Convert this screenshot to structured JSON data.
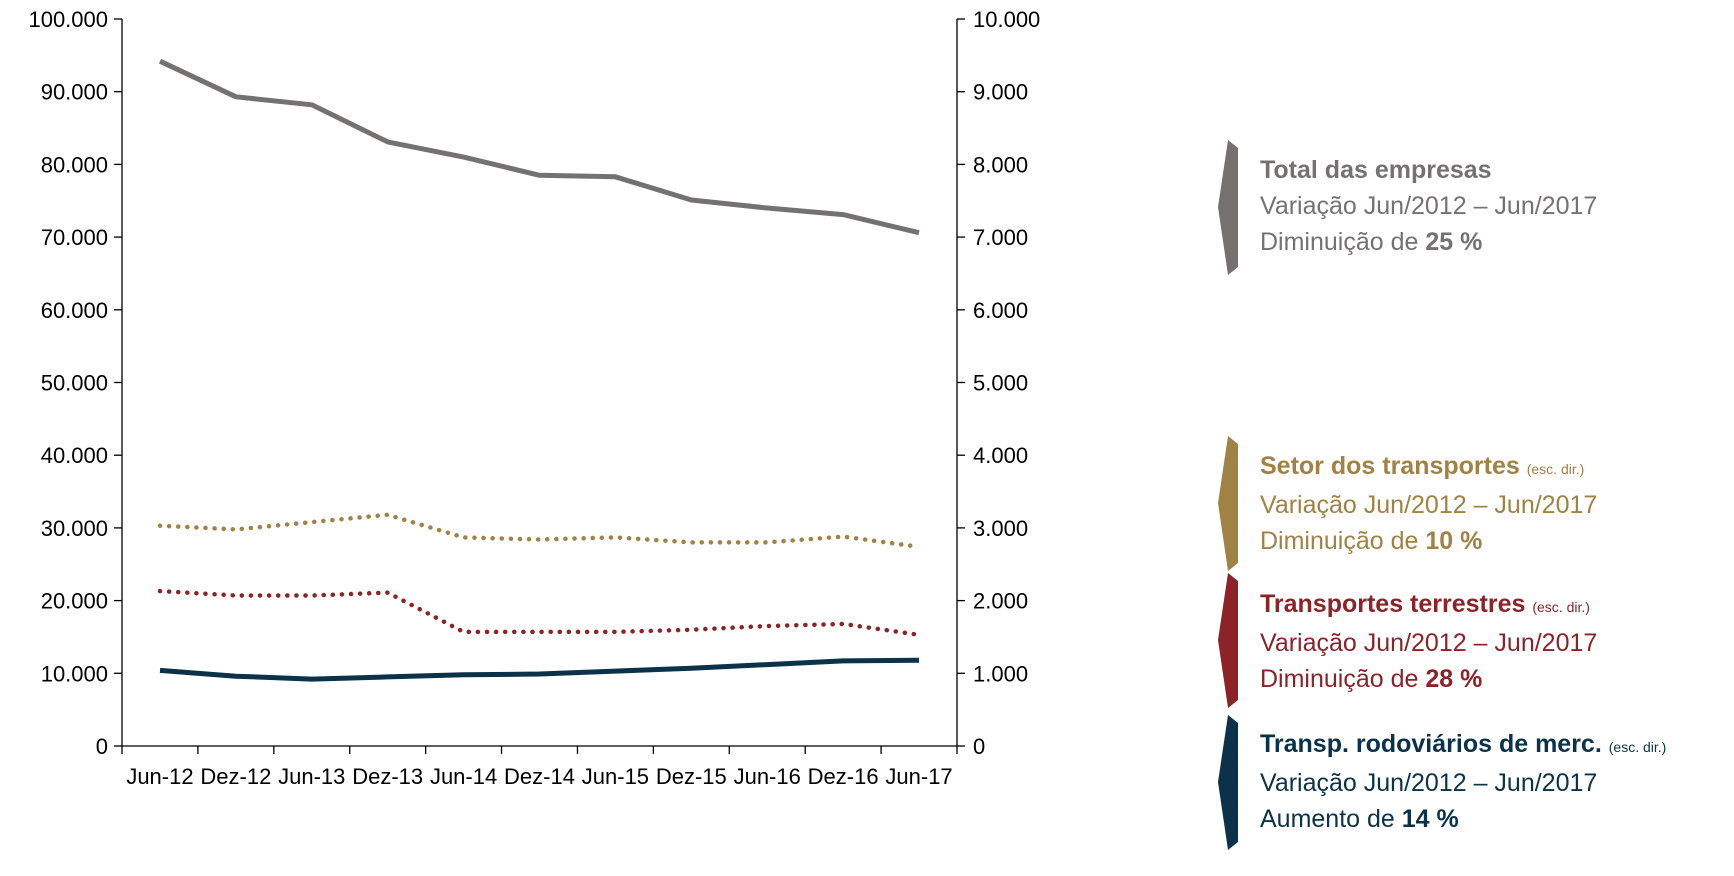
{
  "chart_data": {
    "type": "line",
    "categories": [
      "Jun-12",
      "Dez-12",
      "Jun-13",
      "Dez-13",
      "Jun-14",
      "Dez-14",
      "Jun-15",
      "Dez-15",
      "Jun-16",
      "Dez-16",
      "Jun-17"
    ],
    "y_left": {
      "ylim": [
        0,
        100000
      ],
      "ticks": [
        "0",
        "10.000",
        "20.000",
        "30.000",
        "40.000",
        "50.000",
        "60.000",
        "70.000",
        "80.000",
        "90.000",
        "100.000"
      ]
    },
    "y_right": {
      "ylim": [
        0,
        10000
      ],
      "ticks": [
        "0",
        "1.000",
        "2.000",
        "3.000",
        "4.000",
        "5.000",
        "6.000",
        "7.000",
        "8.000",
        "9.000",
        "10.000"
      ]
    },
    "grid": false,
    "legend_position": "right",
    "series": [
      {
        "name": "Total das empresas",
        "axis": "left",
        "style": "solid",
        "color": "#767171",
        "values": [
          94200,
          89300,
          88200,
          83100,
          81000,
          78500,
          78300,
          75100,
          74000,
          73100,
          70600
        ]
      },
      {
        "name": "Setor dos transportes",
        "axis": "right",
        "style": "dotted",
        "color": "#A08245",
        "values": [
          3030,
          2980,
          3080,
          3180,
          2870,
          2840,
          2870,
          2800,
          2800,
          2880,
          2740
        ]
      },
      {
        "name": "Transportes terrestres",
        "axis": "right",
        "style": "dotted",
        "color": "#8B2329",
        "values": [
          2130,
          2070,
          2070,
          2110,
          1570,
          1570,
          1570,
          1600,
          1650,
          1680,
          1530
        ]
      },
      {
        "name": "Transp. rodoviários de merc.",
        "axis": "right",
        "style": "solid",
        "color": "#0B3248",
        "values": [
          1040,
          960,
          920,
          950,
          980,
          990,
          1030,
          1070,
          1120,
          1170,
          1180
        ]
      }
    ]
  },
  "legend": [
    {
      "title": "Total das empresas",
      "note": "",
      "line2": "Variação Jun/2012 – Jun/2017",
      "line3_prefix": "Diminuição de ",
      "line3_value": "25 %",
      "color": "#767171"
    },
    {
      "title": "Setor dos transportes",
      "note": "(esc. dir.)",
      "line2": "Variação Jun/2012 – Jun/2017",
      "line3_prefix": "Diminuição de ",
      "line3_value": "10 %",
      "color": "#A08245"
    },
    {
      "title": "Transportes terrestres",
      "note": "(esc. dir.)",
      "line2": "Variação Jun/2012 – Jun/2017",
      "line3_prefix": "Diminuição de ",
      "line3_value": "28 %",
      "color": "#8B2329"
    },
    {
      "title": "Transp. rodoviários de merc.",
      "note": "(esc. dir.)",
      "line2": "Variação Jun/2012 – Jun/2017",
      "line3_prefix": "Aumento de ",
      "line3_value": "14 %",
      "color": "#0B3248"
    }
  ]
}
